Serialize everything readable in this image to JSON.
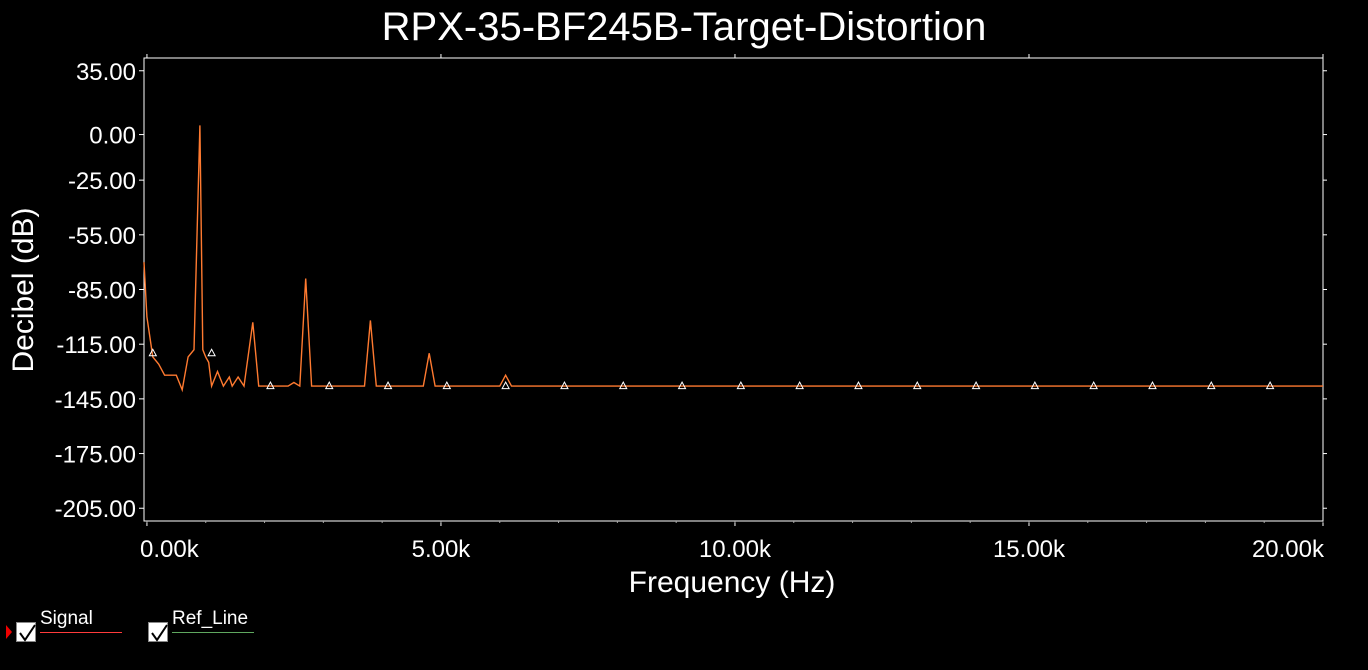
{
  "chart_data": {
    "type": "line",
    "title": "RPX-35-BF245B-Target-Distortion",
    "xlabel": "Frequency (Hz)",
    "ylabel": "Decibel (dB)",
    "xlim": [
      -0.05,
      20.0
    ],
    "ylim": [
      -212,
      42
    ],
    "x_unit": "kHz",
    "yticks": [
      35,
      0,
      -25,
      -55,
      -85,
      -115,
      -145,
      -175,
      -205
    ],
    "ytick_labels": [
      "35.00",
      "0.00",
      "-25.00",
      "-55.00",
      "-85.00",
      "-115.00",
      "-145.00",
      "-175.00",
      "-205.00"
    ],
    "xticks": [
      0,
      5,
      10,
      15,
      20
    ],
    "xtick_labels": [
      "0.00k",
      "5.00k",
      "10.00k",
      "15.00k",
      "20.00k"
    ],
    "grid": false,
    "series": [
      {
        "name": "Signal",
        "color": "#ff7a30",
        "x": [
          -0.05,
          0.0,
          0.1,
          0.2,
          0.3,
          0.35,
          0.5,
          0.6,
          0.7,
          0.8,
          0.9,
          0.95,
          1.0,
          1.05,
          1.1,
          1.2,
          1.3,
          1.4,
          1.45,
          1.55,
          1.65,
          1.8,
          1.9,
          2.0,
          2.1,
          2.3,
          2.4,
          2.5,
          2.6,
          2.7,
          2.8,
          2.9,
          3.0,
          3.1,
          3.3,
          3.4,
          3.5,
          3.6,
          3.7,
          3.8,
          3.9,
          4.0,
          4.1,
          4.3,
          4.4,
          4.5,
          4.6,
          4.7,
          4.8,
          4.9,
          5.0,
          5.1,
          5.3,
          5.5,
          5.7,
          5.9,
          6.0,
          6.1,
          6.2,
          6.4,
          7.0,
          8.0,
          9.0,
          10.0,
          11.0,
          12.0,
          13.0,
          14.0,
          15.0,
          16.0,
          17.0,
          18.0,
          19.0,
          20.0
        ],
        "y": [
          -70,
          -100,
          -122,
          -126,
          -132,
          -132,
          -132,
          -140,
          -122,
          -118,
          5,
          -118,
          -122,
          -125,
          -138,
          -130,
          -138,
          -133,
          -138,
          -133,
          -138,
          -103,
          -138,
          -138,
          -138,
          -138,
          -138,
          -136,
          -138,
          -79,
          -138,
          -138,
          -138,
          -138,
          -138,
          -138,
          -138,
          -138,
          -138,
          -102,
          -138,
          -138,
          -138,
          -138,
          -138,
          -138,
          -138,
          -138,
          -120,
          -138,
          -138,
          -138,
          -138,
          -138,
          -138,
          -138,
          -138,
          -132,
          -138,
          -138,
          -138,
          -138,
          -138,
          -138,
          -138,
          -138,
          -138,
          -138,
          -138,
          -138,
          -138,
          -138,
          -138,
          -138
        ]
      },
      {
        "name": "Ref_Line",
        "color": "#5fa85f",
        "x": [],
        "y": []
      }
    ],
    "markers": {
      "shape": "triangle",
      "points": [
        {
          "x": 0.1,
          "y": -120
        },
        {
          "x": 1.1,
          "y": -120
        },
        {
          "x": 2.1,
          "y": -138
        },
        {
          "x": 3.1,
          "y": -138
        },
        {
          "x": 4.1,
          "y": -138
        },
        {
          "x": 5.1,
          "y": -138
        },
        {
          "x": 6.1,
          "y": -138
        },
        {
          "x": 7.1,
          "y": -138
        },
        {
          "x": 8.1,
          "y": -138
        },
        {
          "x": 9.1,
          "y": -138
        },
        {
          "x": 10.1,
          "y": -138
        },
        {
          "x": 11.1,
          "y": -138
        },
        {
          "x": 12.1,
          "y": -138
        },
        {
          "x": 13.1,
          "y": -138
        },
        {
          "x": 14.1,
          "y": -138
        },
        {
          "x": 15.1,
          "y": -138
        },
        {
          "x": 16.1,
          "y": -138
        },
        {
          "x": 17.1,
          "y": -138
        },
        {
          "x": 18.1,
          "y": -138
        },
        {
          "x": 19.1,
          "y": -138
        }
      ]
    },
    "legend_position": "bottom-left"
  },
  "legend": {
    "items": [
      {
        "label": "Signal",
        "checked": true,
        "color": "#ff3b3b",
        "selected": true
      },
      {
        "label": "Ref_Line",
        "checked": true,
        "color": "#5fa85f",
        "selected": false
      }
    ]
  },
  "colors": {
    "background": "#000000",
    "axis": "#ffffff",
    "text": "#ffffff"
  }
}
